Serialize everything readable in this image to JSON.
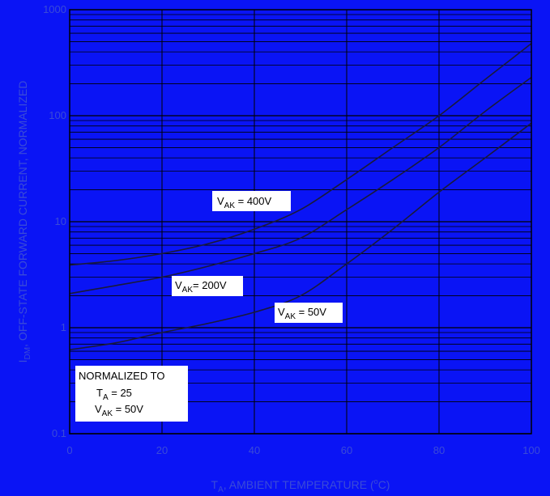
{
  "colors": {
    "background": "#0a14f5",
    "grid": "#000000",
    "curve": "#1a1a3a",
    "tick_text": "#3a4bd8",
    "label_box": "#ffffff"
  },
  "chart_data": {
    "type": "line",
    "x_scale": "linear",
    "y_scale": "log",
    "xlim": [
      0,
      100
    ],
    "ylim": [
      0.1,
      1000
    ],
    "grid": true,
    "x_ticks": [
      "0",
      "20",
      "40",
      "60",
      "80",
      "100"
    ],
    "y_ticks": [
      "0.1",
      "1",
      "10",
      "100",
      "1000"
    ],
    "xlabel": {
      "main": "T",
      "sub": "A",
      "rest": ", AMBIENT TEMPERATURE (",
      "sup": "o",
      "end": "C)"
    },
    "ylabel": {
      "main": "I",
      "sub": "DM",
      "rest": ", OFF-STATE FORWARD CURRENT, NORMALIZED"
    },
    "series": [
      {
        "name": {
          "v": "V",
          "sub": "AK",
          "rest": " = 400V"
        },
        "x": [
          0,
          10,
          20,
          30,
          40,
          50,
          60,
          70,
          80,
          90,
          100
        ],
        "y": [
          3.9,
          4.3,
          5.0,
          6.2,
          8.5,
          13,
          25,
          50,
          100,
          220,
          480
        ]
      },
      {
        "name": {
          "v": "V",
          "sub": "AK",
          "rest": "= 200V"
        },
        "x": [
          0,
          10,
          20,
          30,
          40,
          50,
          60,
          70,
          80,
          90,
          100
        ],
        "y": [
          2.1,
          2.5,
          3.0,
          3.8,
          5.0,
          7.0,
          13,
          25,
          50,
          110,
          230
        ]
      },
      {
        "name": {
          "v": "V",
          "sub": "AK",
          "rest": " = 50V"
        },
        "x": [
          0,
          10,
          20,
          30,
          40,
          50,
          60,
          70,
          80,
          90,
          100
        ],
        "y": [
          0.62,
          0.72,
          0.9,
          1.1,
          1.4,
          2.0,
          4.0,
          8.5,
          19,
          40,
          85
        ]
      }
    ],
    "annotation": {
      "title": "NORMALIZED TO",
      "line1": {
        "v": "T",
        "sub": "A",
        "rest": " = 25"
      },
      "line2": {
        "v": "V",
        "sub": "AK",
        "rest": " = 50V"
      }
    }
  }
}
